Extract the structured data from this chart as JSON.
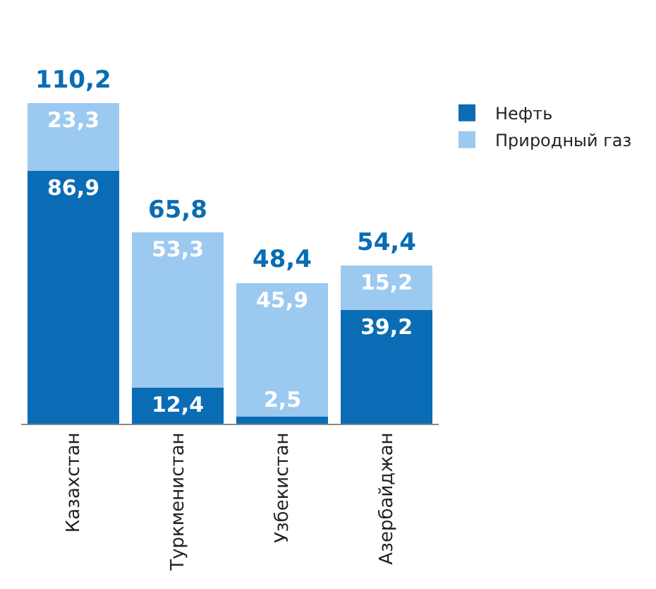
{
  "chart_data": {
    "type": "bar",
    "stacked": true,
    "categories": [
      "Казахстан",
      "Туркменистан",
      "Узбекистан",
      "Азербайджан"
    ],
    "series": [
      {
        "name": "Нефть",
        "color": "#0a6cb4",
        "values": [
          86.9,
          12.4,
          2.5,
          39.2
        ],
        "value_labels": [
          "86,9",
          "12,4",
          "2,5",
          "39,2"
        ]
      },
      {
        "name": "Природный газ",
        "color": "#9cc9ef",
        "values": [
          23.3,
          53.3,
          45.9,
          15.2
        ],
        "value_labels": [
          "23,3",
          "53,3",
          "45,9",
          "15,2"
        ]
      }
    ],
    "totals": [
      "110,2",
      "65,8",
      "48,4",
      "54,4"
    ],
    "legend": "top right"
  }
}
